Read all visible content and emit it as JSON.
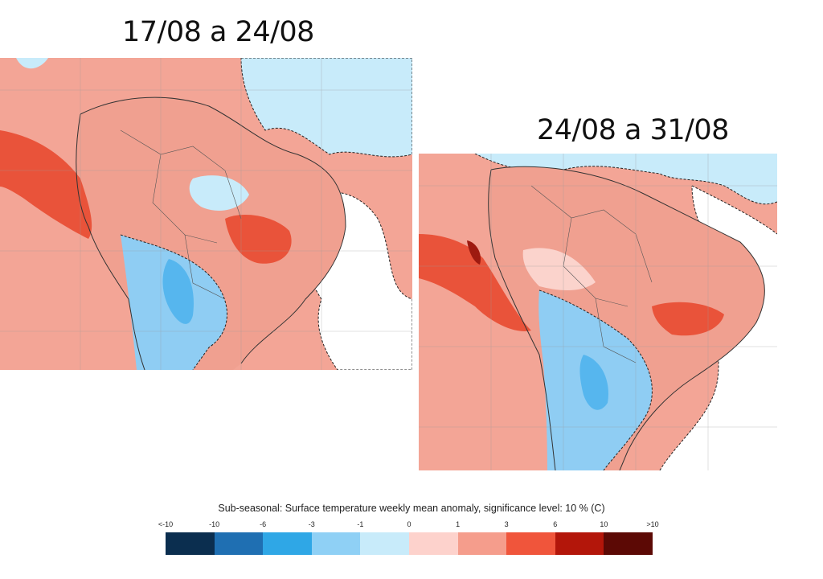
{
  "periods": [
    {
      "title": "17/08 a 24/08"
    },
    {
      "title": "24/08 a 31/08"
    }
  ],
  "colorbar": {
    "title": "Sub-seasonal: Surface temperature weekly mean anomaly, significance level: 10 % (C)",
    "tick_labels": [
      "<-10",
      "-10",
      "-6",
      "-3",
      "-1",
      "0",
      "1",
      "3",
      "6",
      "10",
      ">10"
    ],
    "colors": [
      "#0b2e4f",
      "#1f6fb2",
      "#2fa7e6",
      "#8fd0f5",
      "#c8ebfa",
      "#fdd2cc",
      "#f59d8c",
      "#f0553b",
      "#b3160a",
      "#5c0905"
    ]
  },
  "map_colors": {
    "ocean_warm": "#f3a596",
    "land_warm": "#f0a090",
    "strong_warm": "#e9533a",
    "deep_warm": "#9e1a10",
    "pale_warm": "#fbd3cc",
    "cool": "#8fcdf3",
    "cool_strong": "#56b6ee",
    "neutral": "#ffffff",
    "border": "#555555",
    "contour": "#222222"
  }
}
